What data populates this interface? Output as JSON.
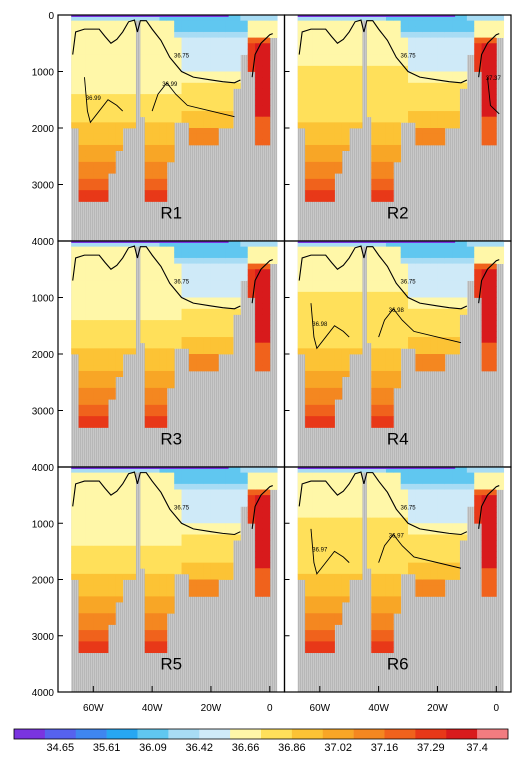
{
  "chart_data": {
    "type": "heatmap",
    "description_note": "",
    "panels": [
      {
        "label": "R1",
        "contour_labels": [
          "36.75",
          "36.99",
          "36.99"
        ]
      },
      {
        "label": "R2",
        "contour_labels": [
          "36.75",
          "37.37"
        ]
      },
      {
        "label": "R3",
        "contour_labels": [
          "36.75"
        ]
      },
      {
        "label": "R4",
        "contour_labels": [
          "36.75",
          "36.98",
          "36.98"
        ]
      },
      {
        "label": "R5",
        "contour_labels": [
          "36.75"
        ]
      },
      {
        "label": "R6",
        "contour_labels": [
          "36.75",
          "36.97",
          "36.97"
        ]
      }
    ],
    "y_axis": {
      "ticks": [
        "0",
        "1000",
        "2000",
        "3000",
        "4000"
      ],
      "ylim": [
        0,
        4000
      ],
      "inverted": true
    },
    "x_axis": {
      "ticks": [
        "60W",
        "40W",
        "20W",
        "0"
      ],
      "values": [
        -60,
        -40,
        -20,
        0
      ],
      "xlim": [
        -72,
        5
      ]
    },
    "colorbar": {
      "tick_labels": [
        "34.65",
        "35.61",
        "36.09",
        "36.42",
        "36.66",
        "36.86",
        "37.02",
        "37.16",
        "37.29",
        "37.4"
      ],
      "colors": [
        "#7a34e0",
        "#5662ee",
        "#3f86f0",
        "#27a7f2",
        "#60c7f0",
        "#a8dcf4",
        "#cfeaf8",
        "#fff7a8",
        "#ffe05a",
        "#fcc335",
        "#f8a626",
        "#f48720",
        "#f0621c",
        "#e83818",
        "#d81a1c",
        "#f27c80"
      ]
    },
    "land_color": "#c5c5c5"
  }
}
